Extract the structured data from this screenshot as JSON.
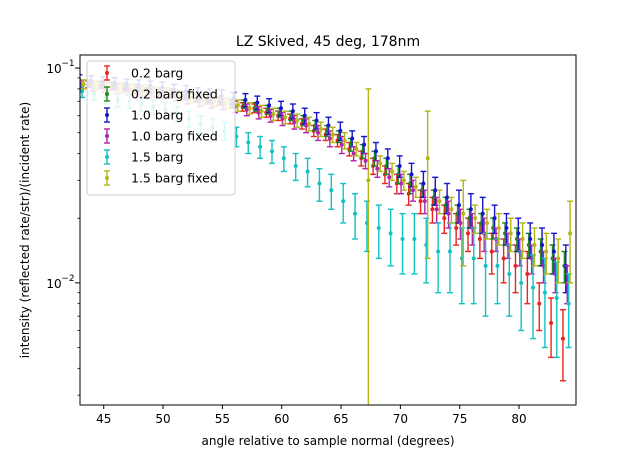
{
  "chart_data": {
    "type": "scatter",
    "title": "LZ Skived, 45 deg, 178nm",
    "xlabel": "angle relative to sample normal (degrees)",
    "ylabel": "intensity (reflected rate/str)/(incident rate)",
    "xlim": [
      43,
      84.8
    ],
    "ylim": [
      0.0027,
      0.115
    ],
    "yscale": "log",
    "grid": false,
    "legend_position": "top-left",
    "x_ticks": [
      45,
      50,
      55,
      60,
      65,
      70,
      75,
      80
    ],
    "x_tick_labels": [
      "45",
      "50",
      "55",
      "60",
      "65",
      "70",
      "75",
      "80"
    ],
    "y_ticks": [
      0.01,
      0.1
    ],
    "y_tick_labels_base": [
      "10",
      "10"
    ],
    "y_tick_labels_exp": [
      "−2",
      "−1"
    ],
    "x": [
      43,
      44,
      45,
      46,
      47,
      48,
      49,
      50,
      51,
      52,
      53,
      54,
      55,
      56,
      57,
      58,
      59,
      60,
      61,
      62,
      63,
      64,
      65,
      66,
      67,
      68,
      69,
      70,
      71,
      72,
      73,
      74,
      75,
      76,
      77,
      78,
      79,
      80,
      81,
      82,
      83,
      84
    ],
    "series": [
      {
        "name": "0.2 barg",
        "color": "#e8261d",
        "values": [
          0.085,
          0.084,
          0.083,
          0.082,
          0.08,
          0.079,
          0.078,
          0.077,
          0.076,
          0.074,
          0.072,
          0.071,
          0.07,
          0.068,
          0.066,
          0.065,
          0.062,
          0.06,
          0.058,
          0.055,
          0.051,
          0.049,
          0.046,
          0.042,
          0.038,
          0.035,
          0.032,
          0.029,
          0.026,
          0.024,
          0.022,
          0.02,
          0.018,
          0.017,
          0.016,
          0.014,
          0.013,
          0.012,
          0.011,
          0.008,
          0.0065,
          0.0055
        ],
        "errors": [
          0.003,
          0.003,
          0.003,
          0.003,
          0.003,
          0.003,
          0.003,
          0.003,
          0.003,
          0.003,
          0.003,
          0.003,
          0.003,
          0.003,
          0.003,
          0.003,
          0.003,
          0.003,
          0.003,
          0.003,
          0.003,
          0.003,
          0.003,
          0.003,
          0.003,
          0.003,
          0.003,
          0.003,
          0.003,
          0.003,
          0.003,
          0.003,
          0.003,
          0.003,
          0.003,
          0.003,
          0.003,
          0.003,
          0.003,
          0.002,
          0.002,
          0.002
        ]
      },
      {
        "name": "0.2 barg fixed",
        "color": "#1a8a1a",
        "values": [
          0.086,
          0.085,
          0.084,
          0.083,
          0.082,
          0.081,
          0.08,
          0.078,
          0.077,
          0.075,
          0.073,
          0.072,
          0.071,
          0.069,
          0.068,
          0.066,
          0.064,
          0.062,
          0.06,
          0.057,
          0.054,
          0.051,
          0.048,
          0.044,
          0.041,
          0.038,
          0.035,
          0.032,
          0.029,
          0.027,
          0.025,
          0.023,
          0.021,
          0.02,
          0.019,
          0.018,
          0.017,
          0.016,
          0.015,
          0.014,
          0.013,
          0.012
        ],
        "errors": [
          0.003,
          0.003,
          0.003,
          0.003,
          0.003,
          0.003,
          0.003,
          0.003,
          0.003,
          0.003,
          0.003,
          0.003,
          0.003,
          0.003,
          0.003,
          0.003,
          0.003,
          0.003,
          0.003,
          0.003,
          0.003,
          0.003,
          0.003,
          0.003,
          0.003,
          0.003,
          0.003,
          0.003,
          0.003,
          0.002,
          0.002,
          0.002,
          0.002,
          0.002,
          0.002,
          0.002,
          0.002,
          0.002,
          0.002,
          0.002,
          0.002,
          0.002
        ]
      },
      {
        "name": "1.0 barg",
        "color": "#1515cc",
        "values": [
          0.088,
          0.087,
          0.086,
          0.085,
          0.084,
          0.083,
          0.082,
          0.081,
          0.079,
          0.078,
          0.076,
          0.075,
          0.074,
          0.072,
          0.071,
          0.069,
          0.067,
          0.065,
          0.063,
          0.06,
          0.057,
          0.054,
          0.051,
          0.047,
          0.044,
          0.041,
          0.038,
          0.035,
          0.032,
          0.029,
          0.027,
          0.025,
          0.023,
          0.022,
          0.021,
          0.02,
          0.018,
          0.017,
          0.016,
          0.015,
          0.014,
          0.012
        ],
        "errors": [
          0.005,
          0.005,
          0.005,
          0.005,
          0.005,
          0.005,
          0.005,
          0.005,
          0.005,
          0.005,
          0.005,
          0.005,
          0.005,
          0.005,
          0.005,
          0.005,
          0.005,
          0.005,
          0.005,
          0.005,
          0.005,
          0.005,
          0.005,
          0.004,
          0.004,
          0.004,
          0.004,
          0.004,
          0.004,
          0.004,
          0.004,
          0.004,
          0.004,
          0.004,
          0.004,
          0.003,
          0.003,
          0.003,
          0.003,
          0.003,
          0.003,
          0.003
        ]
      },
      {
        "name": "1.0 barg fixed",
        "color": "#b023b0",
        "values": [
          0.083,
          0.082,
          0.081,
          0.08,
          0.079,
          0.078,
          0.077,
          0.076,
          0.074,
          0.072,
          0.07,
          0.069,
          0.068,
          0.066,
          0.064,
          0.062,
          0.06,
          0.058,
          0.056,
          0.054,
          0.05,
          0.047,
          0.044,
          0.04,
          0.037,
          0.034,
          0.031,
          0.029,
          0.027,
          0.024,
          0.022,
          0.021,
          0.019,
          0.018,
          0.017,
          0.016,
          0.015,
          0.014,
          0.013,
          0.012,
          0.011,
          0.01
        ],
        "errors": [
          0.004,
          0.004,
          0.004,
          0.004,
          0.004,
          0.004,
          0.004,
          0.004,
          0.004,
          0.004,
          0.004,
          0.004,
          0.004,
          0.004,
          0.004,
          0.004,
          0.004,
          0.004,
          0.004,
          0.004,
          0.004,
          0.004,
          0.004,
          0.003,
          0.003,
          0.003,
          0.003,
          0.003,
          0.003,
          0.003,
          0.003,
          0.003,
          0.003,
          0.003,
          0.003,
          0.002,
          0.002,
          0.002,
          0.002,
          0.002,
          0.002,
          0.002
        ]
      },
      {
        "name": "1.5 barg",
        "color": "#14c1c1",
        "values": [
          0.078,
          0.076,
          0.073,
          0.071,
          0.07,
          0.068,
          0.066,
          0.064,
          0.061,
          0.058,
          0.055,
          0.053,
          0.051,
          0.048,
          0.045,
          0.043,
          0.041,
          0.038,
          0.035,
          0.033,
          0.029,
          0.027,
          0.024,
          0.021,
          0.019,
          0.018,
          0.017,
          0.016,
          0.016,
          0.015,
          0.014,
          0.014,
          0.013,
          0.013,
          0.012,
          0.012,
          0.011,
          0.01,
          0.0095,
          0.009,
          0.0085,
          0.008
        ],
        "errors": [
          0.005,
          0.005,
          0.005,
          0.005,
          0.005,
          0.005,
          0.005,
          0.005,
          0.005,
          0.005,
          0.005,
          0.005,
          0.005,
          0.005,
          0.005,
          0.005,
          0.005,
          0.005,
          0.005,
          0.005,
          0.005,
          0.005,
          0.005,
          0.005,
          0.005,
          0.005,
          0.005,
          0.005,
          0.005,
          0.005,
          0.005,
          0.005,
          0.005,
          0.005,
          0.005,
          0.004,
          0.004,
          0.004,
          0.004,
          0.004,
          0.004,
          0.003
        ]
      },
      {
        "name": "1.5 barg fixed",
        "color": "#b5b514",
        "values": [
          0.084,
          0.083,
          0.082,
          0.081,
          0.08,
          0.079,
          0.078,
          0.077,
          0.075,
          0.073,
          0.071,
          0.07,
          0.069,
          0.067,
          0.065,
          0.063,
          0.061,
          0.059,
          0.057,
          0.055,
          0.052,
          0.049,
          0.046,
          0.042,
          0.03,
          0.036,
          0.033,
          0.03,
          0.028,
          0.038,
          0.024,
          0.022,
          0.021,
          0.02,
          0.019,
          0.018,
          0.017,
          0.016,
          0.015,
          0.014,
          0.013,
          0.017
        ],
        "errors": [
          0.004,
          0.004,
          0.004,
          0.004,
          0.004,
          0.004,
          0.004,
          0.004,
          0.004,
          0.004,
          0.004,
          0.004,
          0.004,
          0.004,
          0.004,
          0.004,
          0.004,
          0.004,
          0.004,
          0.004,
          0.004,
          0.004,
          0.004,
          0.003,
          0.05,
          0.003,
          0.003,
          0.003,
          0.003,
          0.025,
          0.003,
          0.003,
          0.009,
          0.003,
          0.003,
          0.003,
          0.003,
          0.003,
          0.003,
          0.003,
          0.003,
          0.007
        ]
      }
    ]
  }
}
